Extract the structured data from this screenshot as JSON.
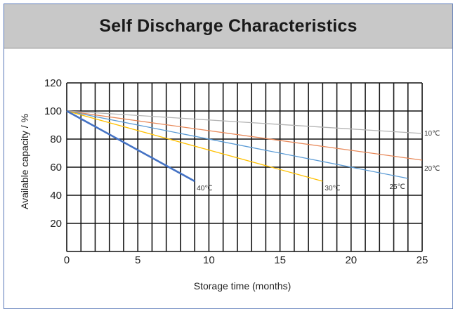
{
  "title": "Self Discharge Characteristics",
  "chart_data": {
    "type": "line",
    "title": "Self Discharge Characteristics",
    "xlabel": "Storage time (months)",
    "ylabel": "Available capacity / %",
    "xlim": [
      0,
      25
    ],
    "ylim": [
      0,
      120
    ],
    "x_ticks": [
      0,
      5,
      10,
      15,
      20,
      25
    ],
    "y_ticks": [
      20,
      40,
      60,
      80,
      100,
      120
    ],
    "grid": true,
    "series": [
      {
        "name": "10℃",
        "color": "#b4b4b4",
        "x": [
          0,
          25
        ],
        "y": [
          100,
          84
        ]
      },
      {
        "name": "20℃",
        "color": "#e8895a",
        "x": [
          0,
          25
        ],
        "y": [
          100,
          65
        ]
      },
      {
        "name": "25℃",
        "color": "#5b9bd5",
        "x": [
          0,
          24
        ],
        "y": [
          100,
          52
        ]
      },
      {
        "name": "30℃",
        "color": "#ffc000",
        "x": [
          0,
          18
        ],
        "y": [
          100,
          50
        ]
      },
      {
        "name": "40℃",
        "color": "#4472c4",
        "x": [
          0,
          9
        ],
        "y": [
          100,
          50
        ]
      }
    ]
  }
}
